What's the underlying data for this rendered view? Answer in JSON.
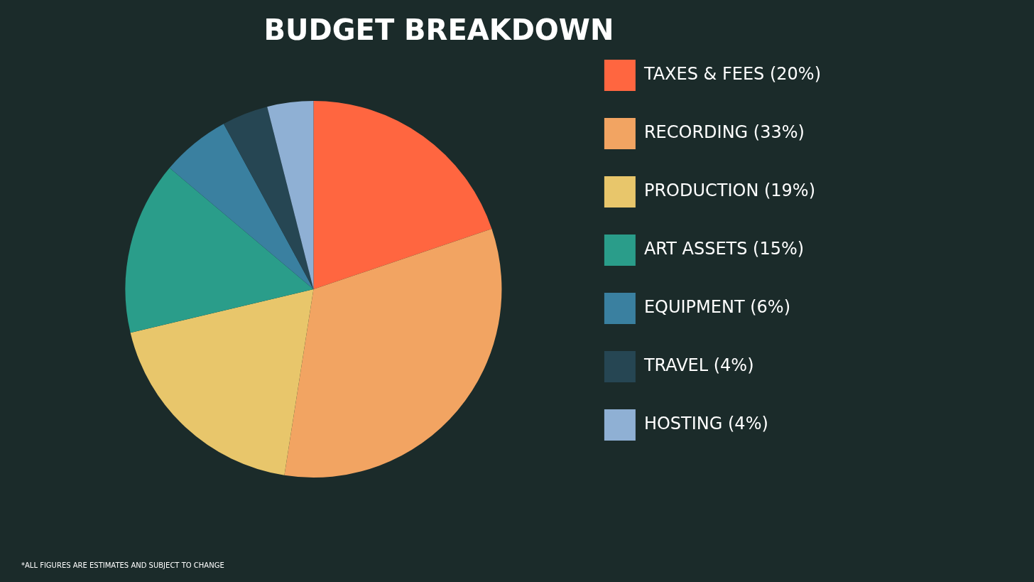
{
  "chart_data": {
    "type": "pie",
    "title": "BUDGET BREAKDOWN",
    "categories": [
      "TAXES & FEES (20%)",
      "RECORDING (33%)",
      "PRODUCTION (19%)",
      "ART ASSETS (15%)",
      "EQUIPMENT (6%)",
      "TRAVEL (4%)",
      "HOSTING (4%)"
    ],
    "values": [
      20,
      33,
      19,
      15,
      6,
      4,
      4
    ],
    "colors": [
      "#ff6640",
      "#f2a462",
      "#e8c66b",
      "#2a9d8a",
      "#3a80a0",
      "#264653",
      "#8fb0d4"
    ],
    "legend": "right",
    "annotations": [
      "*ALL FIGURES ARE ESTIMATES AND SUBJECT TO CHANGE"
    ]
  }
}
